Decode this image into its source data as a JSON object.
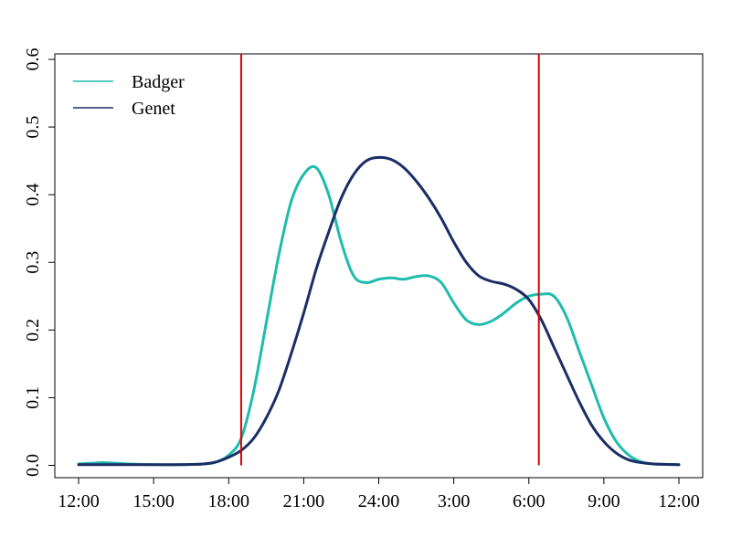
{
  "chart_data": {
    "type": "line",
    "xlabel": "",
    "ylabel": "",
    "xlim": [
      0,
      24
    ],
    "ylim": [
      0,
      0.6
    ],
    "x_ticks": [
      {
        "value": 0,
        "label": "12:00"
      },
      {
        "value": 3,
        "label": "15:00"
      },
      {
        "value": 6,
        "label": "18:00"
      },
      {
        "value": 9,
        "label": "21:00"
      },
      {
        "value": 12,
        "label": "24:00"
      },
      {
        "value": 15,
        "label": "3:00"
      },
      {
        "value": 18,
        "label": "6:00"
      },
      {
        "value": 21,
        "label": "9:00"
      },
      {
        "value": 24,
        "label": "12:00"
      }
    ],
    "y_ticks": [
      {
        "value": 0.0,
        "label": "0.0"
      },
      {
        "value": 0.1,
        "label": "0.1"
      },
      {
        "value": 0.2,
        "label": "0.2"
      },
      {
        "value": 0.3,
        "label": "0.3"
      },
      {
        "value": 0.4,
        "label": "0.4"
      },
      {
        "value": 0.5,
        "label": "0.5"
      },
      {
        "value": 0.6,
        "label": "0.6"
      }
    ],
    "legend_position": "top-left",
    "grid": false,
    "series": [
      {
        "name": "Badger",
        "color": "#1fbcad",
        "x": [
          0,
          0.5,
          1,
          2,
          3,
          4,
          5,
          5.5,
          6,
          6.5,
          7,
          7.5,
          8,
          8.5,
          9,
          9.5,
          10,
          10.5,
          11,
          11.5,
          12,
          12.5,
          13,
          13.5,
          14,
          14.5,
          15,
          15.5,
          16,
          16.5,
          17,
          17.5,
          18,
          18.5,
          19,
          19.5,
          20,
          20.5,
          21,
          21.5,
          22,
          22.5,
          23,
          24
        ],
        "values": [
          0.002,
          0.003,
          0.004,
          0.002,
          0.001,
          0.001,
          0.002,
          0.005,
          0.015,
          0.04,
          0.11,
          0.21,
          0.31,
          0.39,
          0.43,
          0.44,
          0.4,
          0.33,
          0.28,
          0.27,
          0.275,
          0.277,
          0.275,
          0.279,
          0.28,
          0.27,
          0.24,
          0.215,
          0.208,
          0.213,
          0.225,
          0.24,
          0.25,
          0.253,
          0.25,
          0.22,
          0.17,
          0.12,
          0.07,
          0.035,
          0.015,
          0.005,
          0.002,
          0.001
        ]
      },
      {
        "name": "Genet",
        "color": "#1b2d66",
        "x": [
          0,
          1,
          2,
          3,
          4,
          5,
          5.5,
          6,
          6.5,
          7,
          7.5,
          8,
          8.5,
          9,
          9.5,
          10,
          10.5,
          11,
          11.5,
          12,
          12.5,
          13,
          13.5,
          14,
          14.5,
          15,
          15.5,
          16,
          16.5,
          17,
          17.5,
          18,
          18.5,
          19,
          19.5,
          20,
          20.5,
          21,
          21.5,
          22,
          22.5,
          23,
          24
        ],
        "values": [
          0.001,
          0.001,
          0.001,
          0.001,
          0.001,
          0.002,
          0.005,
          0.012,
          0.022,
          0.04,
          0.07,
          0.11,
          0.165,
          0.225,
          0.29,
          0.345,
          0.395,
          0.43,
          0.45,
          0.455,
          0.452,
          0.44,
          0.42,
          0.395,
          0.365,
          0.33,
          0.3,
          0.28,
          0.272,
          0.268,
          0.26,
          0.245,
          0.215,
          0.175,
          0.135,
          0.095,
          0.06,
          0.035,
          0.018,
          0.008,
          0.004,
          0.002,
          0.001
        ]
      }
    ],
    "vertical_lines": [
      {
        "x": 6.5,
        "color": "#e00000"
      },
      {
        "x": 18.4,
        "color": "#e00000"
      }
    ]
  }
}
